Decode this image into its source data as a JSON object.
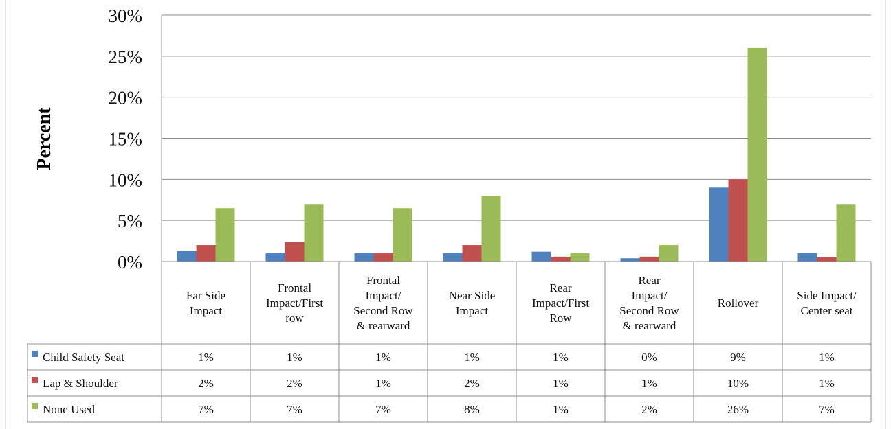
{
  "chart_data": {
    "type": "bar",
    "ylabel": "Percent",
    "ylim": [
      0,
      30
    ],
    "yticks": [
      "0%",
      "5%",
      "10%",
      "15%",
      "20%",
      "25%",
      "30%"
    ],
    "grid": true,
    "legend": "data-table-left",
    "categories": [
      [
        "Far Side",
        "Impact"
      ],
      [
        "Frontal",
        "Impact/First",
        "row"
      ],
      [
        "Frontal",
        "Impact/",
        "Second Row",
        "& rearward"
      ],
      [
        "Near Side",
        "Impact"
      ],
      [
        "Rear",
        "Impact/First",
        "Row"
      ],
      [
        "Rear",
        "Impact/",
        "Second Row",
        "& rearward"
      ],
      [
        "Rollover"
      ],
      [
        "Side Impact/",
        "Center seat"
      ]
    ],
    "series": [
      {
        "name": "Child Safety Seat",
        "color": "#4f81bd",
        "values": [
          1.3,
          1.0,
          1.0,
          1.0,
          1.2,
          0.4,
          9.0,
          1.0
        ],
        "labels": [
          "1%",
          "1%",
          "1%",
          "1%",
          "1%",
          "0%",
          "9%",
          "1%"
        ]
      },
      {
        "name": "Lap & Shoulder",
        "color": "#c0504d",
        "values": [
          2.0,
          2.4,
          1.0,
          2.0,
          0.6,
          0.6,
          10.0,
          0.5
        ],
        "labels": [
          "2%",
          "2%",
          "1%",
          "2%",
          "1%",
          "1%",
          "10%",
          "1%"
        ]
      },
      {
        "name": "None Used",
        "color": "#9bbb59",
        "values": [
          6.5,
          7.0,
          6.5,
          8.0,
          1.0,
          2.0,
          26.0,
          7.0
        ],
        "labels": [
          "7%",
          "7%",
          "7%",
          "8%",
          "1%",
          "2%",
          "26%",
          "7%"
        ]
      }
    ]
  }
}
